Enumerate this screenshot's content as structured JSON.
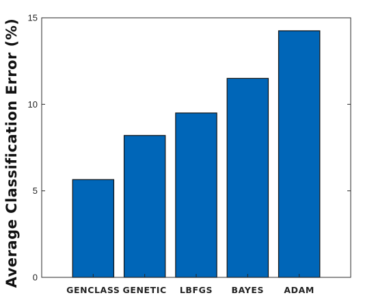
{
  "chart_data": {
    "type": "bar",
    "title": "",
    "xlabel": "",
    "ylabel": "Average Classification Error (%)",
    "categories": [
      "GENCLASS",
      "GENETIC",
      "LBFGS",
      "BAYES",
      "ADAM"
    ],
    "values": [
      5.65,
      8.2,
      9.5,
      11.5,
      14.25
    ],
    "ylim": [
      0,
      15
    ],
    "yticks": [
      0,
      5,
      10,
      15
    ],
    "xlim": [
      0,
      6
    ],
    "x_positions": [
      1,
      2,
      3,
      4,
      5
    ],
    "bar_color": "#0066b8",
    "edge_color": "#111111",
    "grid": false,
    "legend": "none"
  }
}
